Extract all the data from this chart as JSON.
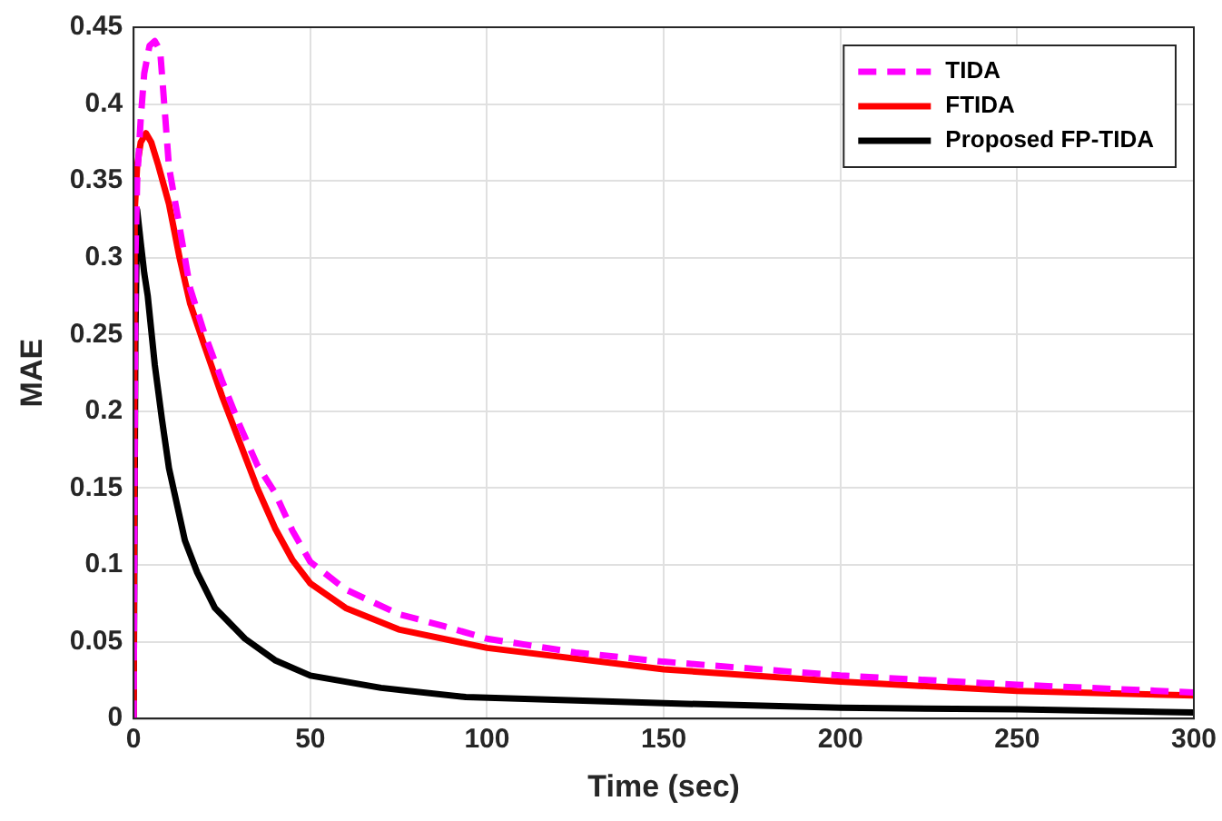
{
  "chart_data": {
    "type": "line",
    "xlabel": "Time (sec)",
    "ylabel": "MAE",
    "xlim": [
      0,
      300
    ],
    "xticks": [
      0,
      50,
      100,
      150,
      200,
      250,
      300
    ],
    "ylim": [
      0,
      0.45
    ],
    "yticks": [
      0,
      0.05,
      0.1,
      0.15,
      0.2,
      0.25,
      0.3,
      0.35,
      0.4,
      0.45
    ],
    "grid": true,
    "legend": "top right",
    "marker": "none",
    "series": [
      {
        "name": "TIDA",
        "color": "#ff00ff",
        "line_style": "dashed",
        "x": [
          0,
          0.5,
          1,
          2,
          3,
          4.5,
          6,
          7.5,
          9,
          10,
          13,
          16,
          20,
          25,
          30,
          35,
          40,
          45,
          50,
          60,
          75,
          88,
          100,
          125,
          150,
          200,
          250,
          300
        ],
        "values": [
          0,
          0.3,
          0.35,
          0.39,
          0.42,
          0.438,
          0.441,
          0.435,
          0.39,
          0.359,
          0.32,
          0.28,
          0.251,
          0.22,
          0.191,
          0.165,
          0.147,
          0.122,
          0.102,
          0.084,
          0.068,
          0.06,
          0.052,
          0.043,
          0.037,
          0.028,
          0.022,
          0.017
        ]
      },
      {
        "name": "FTIDA",
        "color": "#ff0000",
        "line_style": "solid",
        "x": [
          0,
          0.3,
          1,
          2,
          3.5,
          5,
          7,
          10,
          13,
          16,
          20,
          25,
          30,
          35,
          40,
          45,
          50,
          60,
          75,
          100,
          150,
          200,
          250,
          300
        ],
        "values": [
          0,
          0.33,
          0.36,
          0.375,
          0.381,
          0.375,
          0.36,
          0.335,
          0.3,
          0.27,
          0.243,
          0.21,
          0.18,
          0.15,
          0.124,
          0.103,
          0.088,
          0.072,
          0.058,
          0.046,
          0.032,
          0.024,
          0.018,
          0.015
        ]
      },
      {
        "name": "Proposed FP-TIDA",
        "color": "#000000",
        "line_style": "solid",
        "x": [
          0,
          0.5,
          1,
          2,
          3,
          4,
          6,
          8,
          10,
          14.5,
          18,
          23,
          31.5,
          40,
          50,
          70,
          94,
          150,
          200,
          250,
          300
        ],
        "values": [
          0,
          0.25,
          0.331,
          0.31,
          0.29,
          0.275,
          0.23,
          0.195,
          0.163,
          0.116,
          0.095,
          0.072,
          0.052,
          0.038,
          0.028,
          0.02,
          0.014,
          0.01,
          0.007,
          0.006,
          0.004
        ]
      }
    ]
  }
}
